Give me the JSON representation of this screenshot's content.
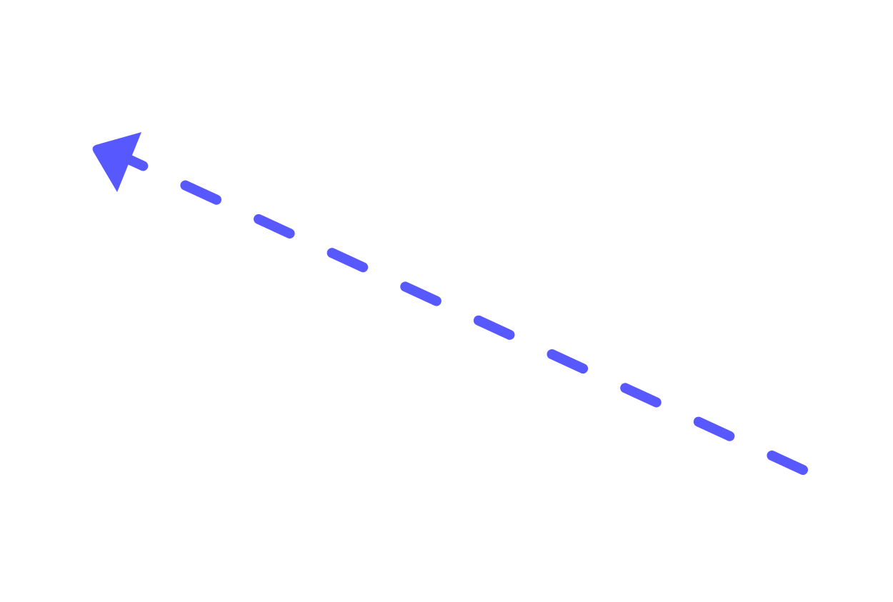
{
  "diagram": {
    "shape": "dashed-arrow",
    "direction": "up-left",
    "line_style": "dashed",
    "colors": {
      "stroke": "#5858FF",
      "background": "#FFFFFF"
    },
    "icon": "arrow-head-icon"
  }
}
